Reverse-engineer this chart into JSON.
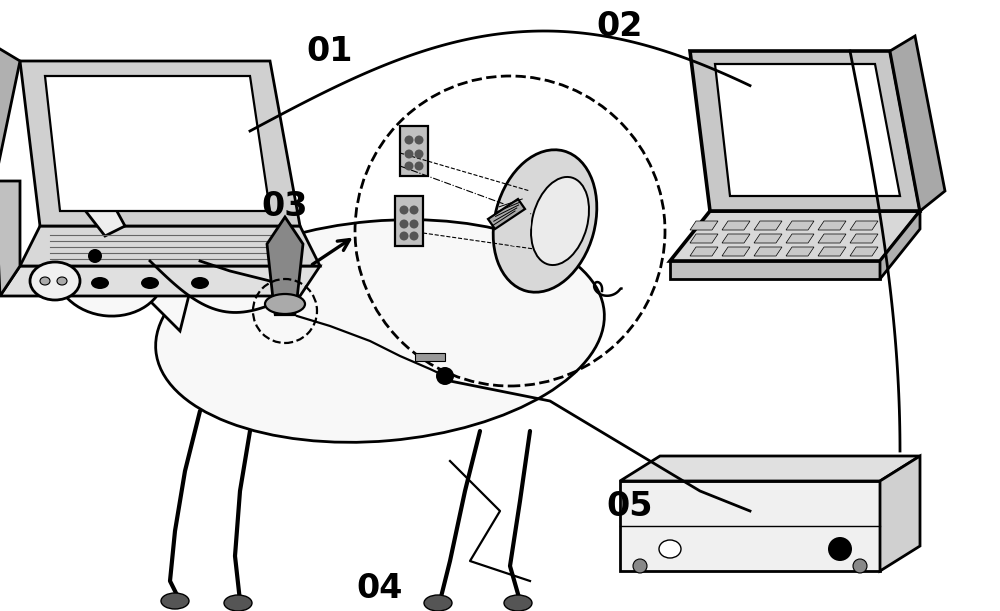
{
  "background_color": "#ffffff",
  "label_01": "01",
  "label_02": "02",
  "label_03": "03",
  "label_04": "04",
  "label_05": "05",
  "label_fontsize": 24,
  "label_fontweight": "bold",
  "line_color": "#000000",
  "line_width": 2.0
}
